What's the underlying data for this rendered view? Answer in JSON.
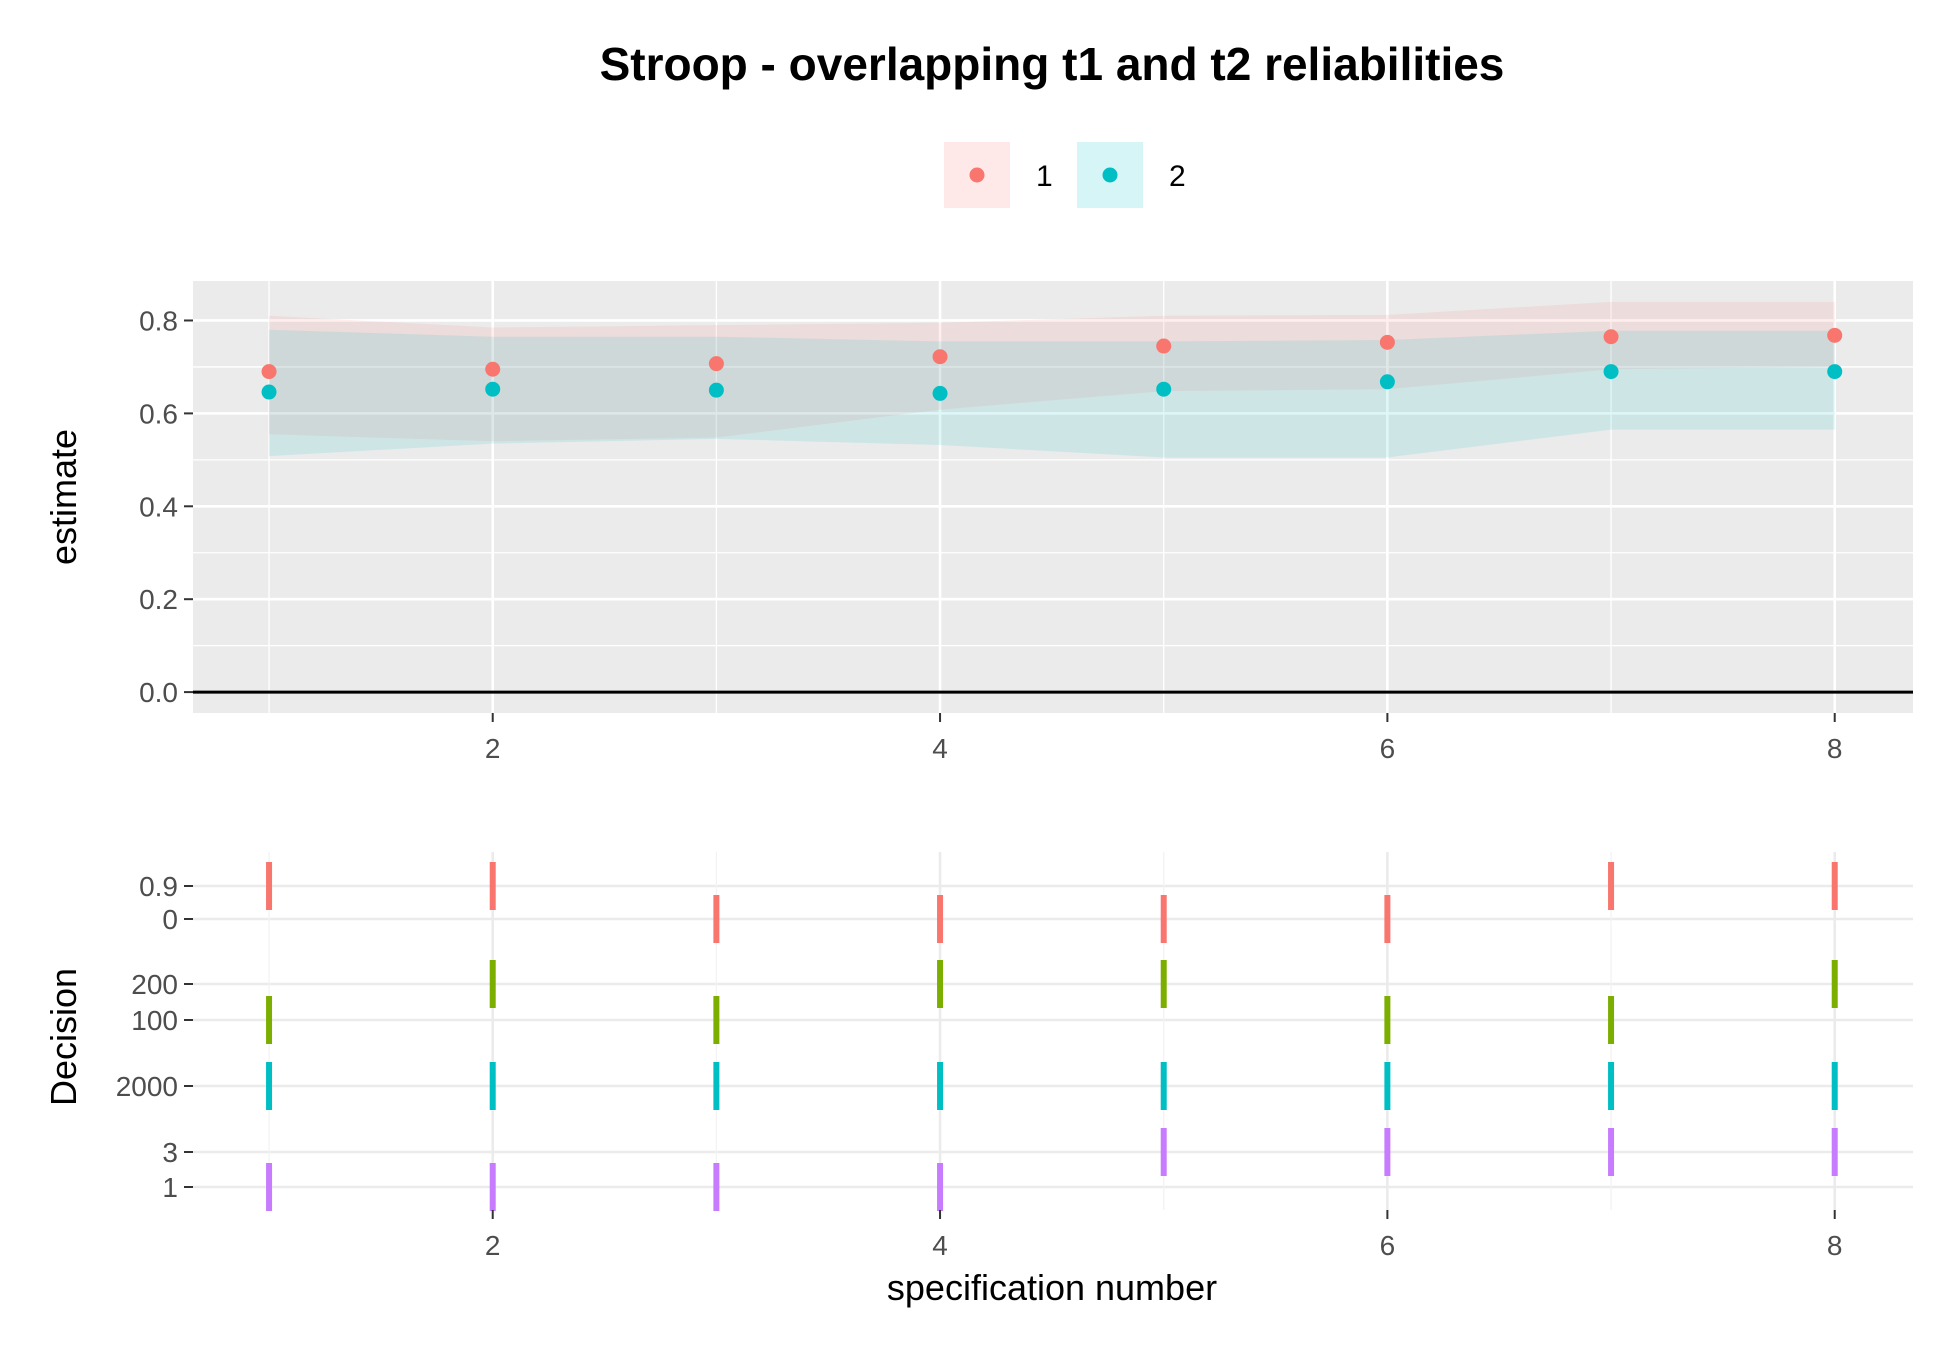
{
  "chart_data": [
    {
      "type": "scatter",
      "title": "Stroop - overlapping t1 and t2 reliabilities",
      "xlabel": "",
      "ylabel": "estimate",
      "xlim": [
        0.66,
        8.35
      ],
      "ylim": [
        -0.045,
        0.885
      ],
      "x_ticks": [
        "2",
        "4",
        "6",
        "8"
      ],
      "y_ticks": [
        "0.0",
        "0.2",
        "0.4",
        "0.6",
        "0.8"
      ],
      "reference_line_y": 0,
      "grid": true,
      "legend_position": "top",
      "x": [
        1,
        2,
        3,
        4,
        5,
        6,
        7,
        8
      ],
      "series": [
        {
          "name": "1",
          "color": "#F8766D",
          "values": [
            0.69,
            0.695,
            0.707,
            0.722,
            0.745,
            0.753,
            0.765,
            0.768
          ],
          "ribbon_lower": [
            0.555,
            0.54,
            0.548,
            0.608,
            0.648,
            0.652,
            0.695,
            0.7
          ],
          "ribbon_upper": [
            0.81,
            0.785,
            0.79,
            0.795,
            0.81,
            0.812,
            0.84,
            0.84
          ]
        },
        {
          "name": "2",
          "color": "#00BFC4",
          "values": [
            0.646,
            0.652,
            0.65,
            0.643,
            0.652,
            0.668,
            0.69,
            0.69
          ],
          "ribbon_lower": [
            0.508,
            0.535,
            0.545,
            0.532,
            0.505,
            0.505,
            0.565,
            0.565
          ],
          "ribbon_upper": [
            0.78,
            0.765,
            0.765,
            0.755,
            0.755,
            0.758,
            0.778,
            0.778
          ]
        }
      ]
    },
    {
      "type": "scatter",
      "title": "",
      "xlabel": "specification number",
      "ylabel": "Decision",
      "xlim": [
        0.66,
        8.35
      ],
      "x_ticks": [
        "2",
        "4",
        "6",
        "8"
      ],
      "marker": "vertical-tick",
      "grid": true,
      "x": [
        1,
        2,
        3,
        4,
        5,
        6,
        7,
        8
      ],
      "groups": [
        {
          "color": "#F8766D",
          "levels": [
            "0.9",
            "0"
          ],
          "values": [
            "0.9",
            "0.9",
            "0",
            "0",
            "0",
            "0",
            "0.9",
            "0.9"
          ]
        },
        {
          "color": "#7CAE00",
          "levels": [
            "200",
            "100"
          ],
          "values": [
            "100",
            "200",
            "100",
            "200",
            "200",
            "100",
            "100",
            "200"
          ]
        },
        {
          "color": "#00BFC4",
          "levels": [
            "2000"
          ],
          "values": [
            "2000",
            "2000",
            "2000",
            "2000",
            "2000",
            "2000",
            "2000",
            "2000"
          ]
        },
        {
          "color": "#C77CFF",
          "levels": [
            "3",
            "1"
          ],
          "values": [
            "1",
            "1",
            "1",
            "1",
            "3",
            "3",
            "3",
            "3"
          ]
        }
      ]
    }
  ]
}
